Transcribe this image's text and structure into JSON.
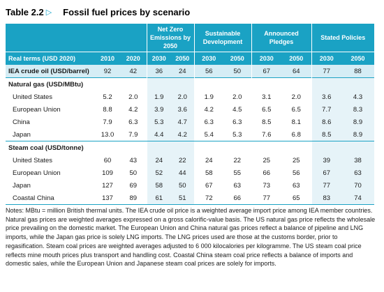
{
  "table_number": "Table 2.2",
  "title": "Fossil fuel prices by scenario",
  "scenarios": [
    "Net Zero Emissions by 2050",
    "Sustainable Development",
    "Announced Pledges",
    "Stated Policies"
  ],
  "header_label": "Real terms (USD 2020)",
  "year_headers": [
    "2010",
    "2020",
    "2030",
    "2050",
    "2030",
    "2050",
    "2030",
    "2050",
    "2030",
    "2050"
  ],
  "oil": {
    "label": "IEA crude oil (USD/barrel)",
    "values": [
      "92",
      "42",
      "36",
      "24",
      "56",
      "50",
      "67",
      "64",
      "77",
      "88"
    ]
  },
  "gas": {
    "section": "Natural gas (USD/MBtu)",
    "rows": [
      {
        "label": "United States",
        "values": [
          "5.2",
          "2.0",
          "1.9",
          "2.0",
          "1.9",
          "2.0",
          "3.1",
          "2.0",
          "3.6",
          "4.3"
        ]
      },
      {
        "label": "European Union",
        "values": [
          "8.8",
          "4.2",
          "3.9",
          "3.6",
          "4.2",
          "4.5",
          "6.5",
          "6.5",
          "7.7",
          "8.3"
        ]
      },
      {
        "label": "China",
        "values": [
          "7.9",
          "6.3",
          "5.3",
          "4.7",
          "6.3",
          "6.3",
          "8.5",
          "8.1",
          "8.6",
          "8.9"
        ]
      },
      {
        "label": "Japan",
        "values": [
          "13.0",
          "7.9",
          "4.4",
          "4.2",
          "5.4",
          "5.3",
          "7.6",
          "6.8",
          "8.5",
          "8.9"
        ]
      }
    ]
  },
  "coal": {
    "section": "Steam coal (USD/tonne)",
    "rows": [
      {
        "label": "United States",
        "values": [
          "60",
          "43",
          "24",
          "22",
          "24",
          "22",
          "25",
          "25",
          "39",
          "38"
        ]
      },
      {
        "label": "European Union",
        "values": [
          "109",
          "50",
          "52",
          "44",
          "58",
          "55",
          "66",
          "56",
          "67",
          "63"
        ]
      },
      {
        "label": "Japan",
        "values": [
          "127",
          "69",
          "58",
          "50",
          "67",
          "63",
          "73",
          "63",
          "77",
          "70"
        ]
      },
      {
        "label": "Coastal China",
        "values": [
          "137",
          "89",
          "61",
          "51",
          "72",
          "66",
          "77",
          "65",
          "83",
          "74"
        ]
      }
    ]
  },
  "notes": "Notes: MBtu = million British thermal units. The IEA crude oil price is a weighted average import price among IEA member countries. Natural gas prices are weighted averages expressed on a gross calorific-value basis. The US natural gas price reflects the wholesale price prevailing on the domestic market. The European Union and China natural gas prices reflect a balance of pipeline and LNG imports, while the Japan gas price is solely LNG imports. The LNG prices used are those at the customs border, prior to regasification. Steam coal prices are weighted averages adjusted to 6 000 kilocalories per kilogramme. The US steam coal price reflects mine mouth prices plus transport and handling cost. Coastal China steam coal price reflects a balance of imports and domestic sales, while the European Union and Japanese steam coal prices are solely for imports.",
  "colors": {
    "header_bg": "#1aa2c4",
    "highlight_row": "#d5edf5",
    "shade_col": "#e6f3f8",
    "accent": "#17a3c9"
  }
}
